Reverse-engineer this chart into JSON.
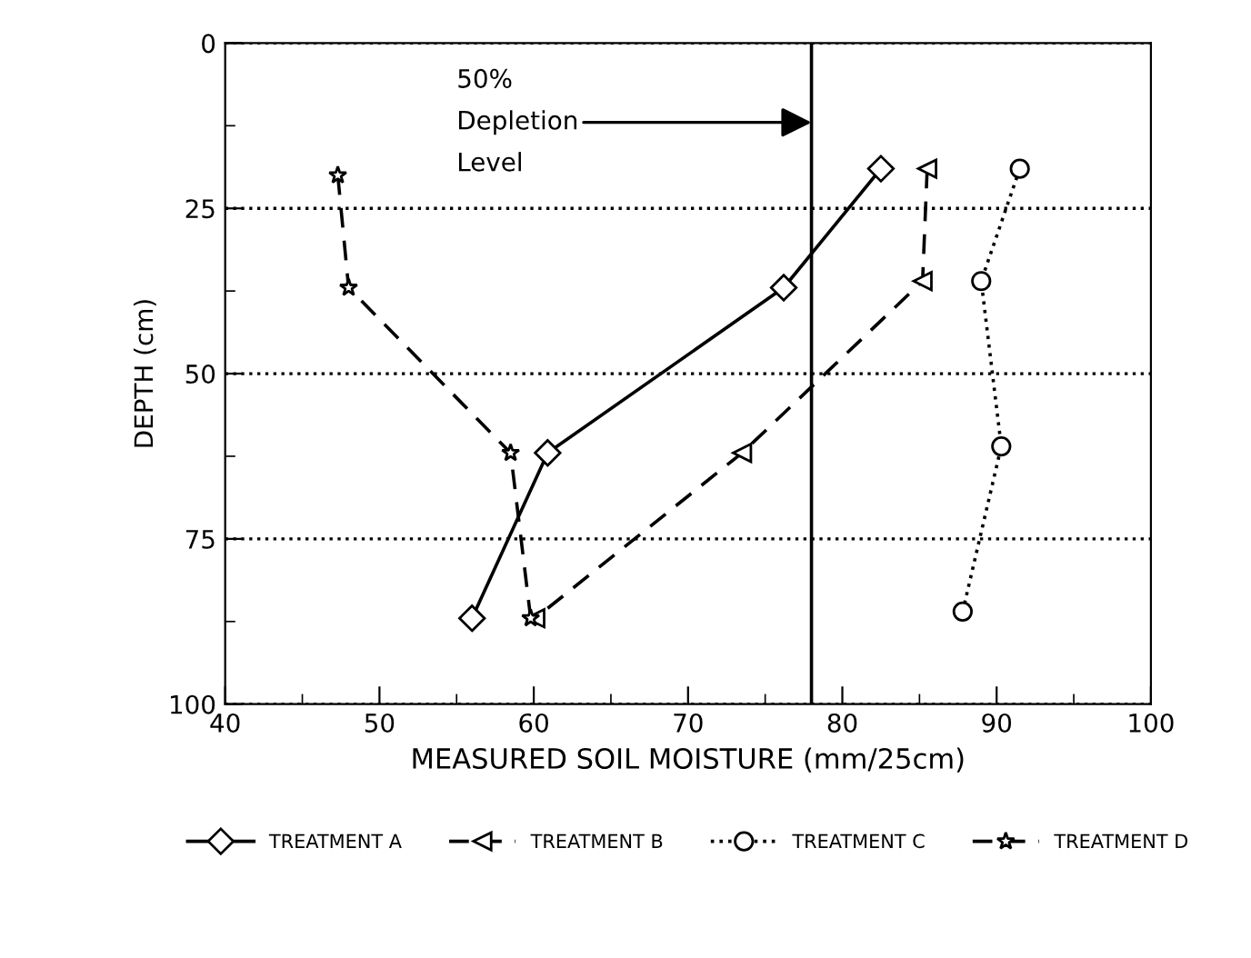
{
  "chart_data": {
    "type": "line",
    "xlabel": "MEASURED SOIL MOISTURE (mm/25cm)",
    "ylabel": "DEPTH (cm)",
    "xlim": [
      40,
      100
    ],
    "xticks": [
      40,
      50,
      60,
      70,
      80,
      90,
      100
    ],
    "ylim": [
      100,
      0
    ],
    "yticks": [
      0,
      25,
      50,
      75,
      100
    ],
    "grid": "y",
    "legend": "bottom",
    "ref_lines": [
      {
        "axis": "x",
        "value": 78,
        "label": "50%\nDepletion\nLevel",
        "color": "#000000",
        "line_style": "solid"
      }
    ],
    "series": [
      {
        "name": "TREATMENT A",
        "color": "#000000",
        "marker": "diamond",
        "line_style": "solid",
        "x": [
          82.5,
          76.2,
          60.9,
          56.0
        ],
        "values": [
          19,
          37,
          62,
          87
        ]
      },
      {
        "name": "TREATMENT B",
        "color": "#000000",
        "marker": "triangle",
        "line_style": "dashed",
        "x": [
          85.5,
          85.2,
          73.5,
          60.1
        ],
        "values": [
          19,
          36,
          62,
          87
        ]
      },
      {
        "name": "TREATMENT C",
        "color": "#000000",
        "marker": "circle",
        "line_style": "dotted",
        "x": [
          91.5,
          89.0,
          90.3,
          87.8
        ],
        "values": [
          19,
          36,
          61,
          86
        ]
      },
      {
        "name": "TREATMENT D",
        "color": "#000000",
        "marker": "star",
        "line_style": "dashed",
        "x": [
          47.3,
          48.0,
          58.5,
          59.8
        ],
        "values": [
          20,
          37,
          62,
          87
        ]
      }
    ]
  }
}
